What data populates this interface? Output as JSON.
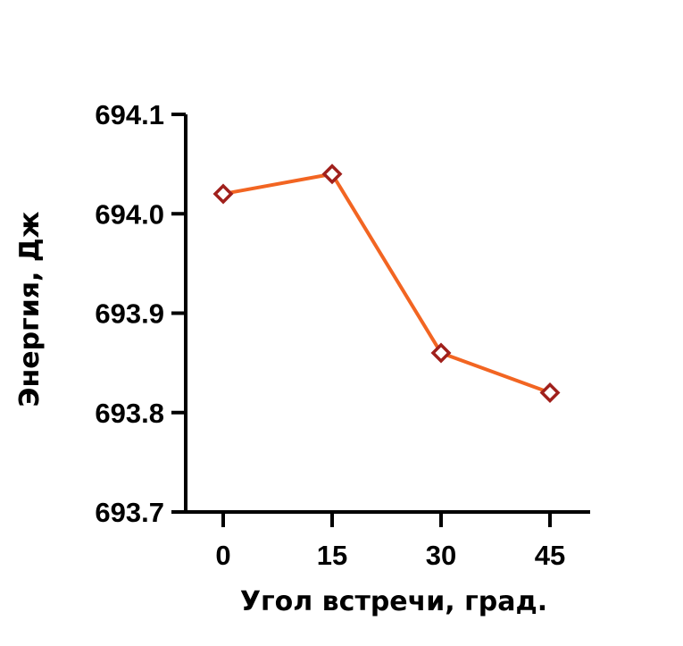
{
  "chart_data": {
    "type": "line",
    "title": "",
    "xlabel": "Угол встречи, град.",
    "ylabel": "Энергия, Дж",
    "categories": [
      "0",
      "15",
      "30",
      "45"
    ],
    "x": [
      0,
      15,
      30,
      45
    ],
    "series": [
      {
        "values": [
          694.02,
          694.04,
          693.86,
          693.82
        ],
        "line_color": "#F26522",
        "marker": "diamond-open",
        "marker_color": "#A0201C"
      }
    ],
    "ylim": [
      693.7,
      694.1
    ],
    "yticks": [
      "693.7",
      "693.8",
      "693.9",
      "694.0",
      "694.1"
    ],
    "yticks_values": [
      693.7,
      693.8,
      693.9,
      694.0,
      694.1
    ],
    "grid": false,
    "legend": "none"
  }
}
